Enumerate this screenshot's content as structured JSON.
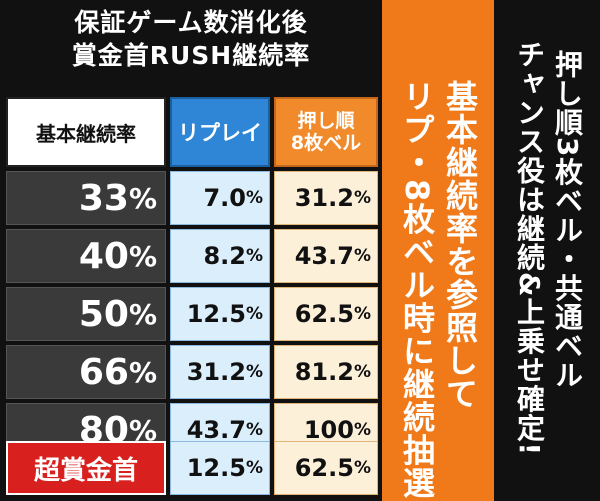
{
  "title": {
    "line1": "保証ゲーム数消化後",
    "line2": "賞金首RUSH継続率"
  },
  "headers": {
    "base": "基本継続率",
    "replay": "リプレイ",
    "bell_line1": "押し順",
    "bell_line2": "8枚ベル"
  },
  "rows": [
    {
      "label": "33",
      "replay": "7.0",
      "bell": "31.2"
    },
    {
      "label": "40",
      "replay": "8.2",
      "bell": "43.7"
    },
    {
      "label": "50",
      "replay": "12.5",
      "bell": "62.5"
    },
    {
      "label": "66",
      "replay": "31.2",
      "bell": "81.2"
    },
    {
      "label": "80",
      "replay": "43.7",
      "bell": "100"
    }
  ],
  "special_row": {
    "label": "超賞金首",
    "replay": "12.5",
    "bell": "62.5"
  },
  "pct_sign": "%",
  "orange_text": {
    "col1": "基本継続率を参照して",
    "col2": "リプ・8枚ベル時に継続抽選"
  },
  "black_text": {
    "col1": "押し順3枚ベル・共通ベル",
    "col2": "チャンス役は継続&上乗せ確定!"
  },
  "colors": {
    "orange": "#f07a1a",
    "blue": "#2f86d6",
    "red": "#d8201f"
  }
}
